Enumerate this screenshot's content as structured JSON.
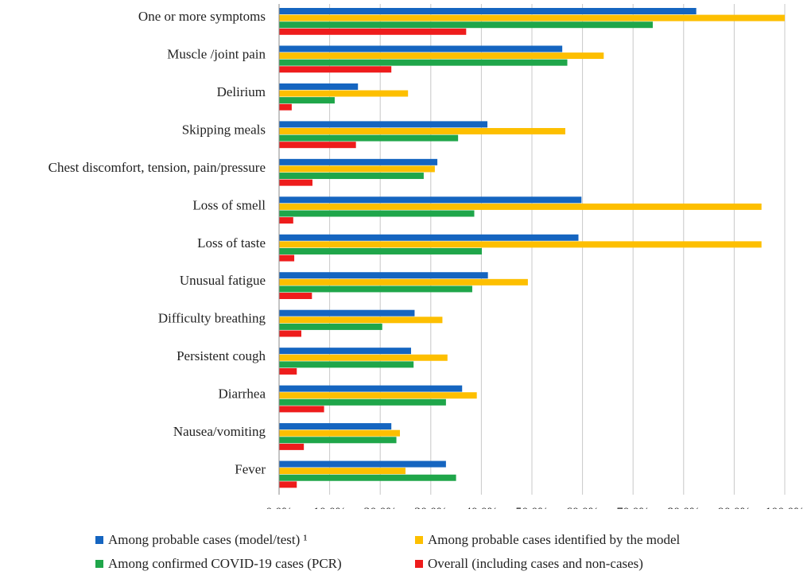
{
  "chart_data": {
    "type": "bar",
    "orientation": "horizontal",
    "categories": [
      "One or more symptoms",
      "Muscle /joint pain",
      "Delirium",
      "Skipping meals",
      "Chest discomfort, tension, pain/pressure",
      "Loss of smell",
      "Loss of taste",
      "Unusual fatigue",
      "Difficulty breathing",
      "Persistent cough",
      "Diarrhea",
      "Nausea/vomiting",
      "Fever"
    ],
    "series": [
      {
        "name": "Among probable cases (model/test) ¹",
        "color": "#1565c0",
        "values": [
          82.5,
          56.0,
          15.6,
          41.2,
          31.3,
          59.8,
          59.2,
          41.3,
          26.8,
          26.1,
          36.2,
          22.2,
          33.0
        ]
      },
      {
        "name": "Among probable cases identified by the model",
        "color": "#fdbf00",
        "values": [
          100.0,
          64.2,
          25.5,
          56.6,
          30.8,
          95.4,
          95.4,
          49.2,
          32.3,
          33.3,
          39.1,
          23.9,
          25.0
        ]
      },
      {
        "name": "Among confirmed COVID-19 cases (PCR)",
        "color": "#1fa64a",
        "values": [
          73.9,
          57.0,
          11.0,
          35.4,
          28.6,
          38.6,
          40.1,
          38.2,
          20.4,
          26.6,
          33.0,
          23.2,
          35.0
        ]
      },
      {
        "name": "Overall (including cases and non-cases)",
        "color": "#ee1c1c",
        "values": [
          37.0,
          22.2,
          2.5,
          15.2,
          6.6,
          2.8,
          3.0,
          6.5,
          4.4,
          3.5,
          8.9,
          4.9,
          3.5
        ]
      }
    ],
    "xticks": [
      "0.0%",
      "10.0%",
      "20.0%",
      "30.0%",
      "40.0%",
      "50.0%",
      "60.0%",
      "70.0%",
      "80.0%",
      "90.0%",
      "100.0%"
    ],
    "xlim": [
      0,
      100
    ],
    "grid": true,
    "legend_position": "bottom",
    "title": "",
    "xlabel": "",
    "ylabel": ""
  }
}
